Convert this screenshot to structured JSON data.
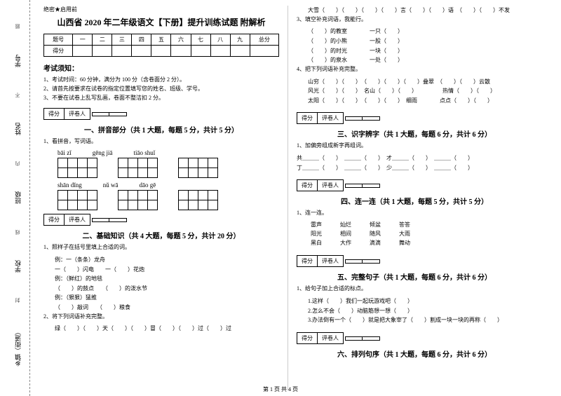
{
  "header_tag": "绝密★启用前",
  "title": "山西省 2020 年二年级语文【下册】提升训练试题 附解析",
  "score_table": {
    "cols": [
      "题号",
      "一",
      "二",
      "三",
      "四",
      "五",
      "六",
      "七",
      "八",
      "九",
      "总分"
    ],
    "row_label": "得分"
  },
  "instructions_heading": "考试须知：",
  "instructions": [
    "1、考试时间：60 分钟，满分为 100 分（含卷面分 2 分）。",
    "2、请首先按要求在试卷的指定位置填写您的姓名、班级、学号。",
    "3、不要在试卷上乱写乱画，卷面不整洁扣 2 分。"
  ],
  "score_box": {
    "label1": "得分",
    "label2": "评卷人"
  },
  "sections": {
    "s1": {
      "title": "一、拼音部分（共 1 大题，每题 5 分，共计 5 分）",
      "q1": "1、看拼音，写词语。",
      "pinyin": [
        [
          "bāi  zǐ",
          "gēng  jiā",
          "tiāo  shuǐ"
        ],
        [
          "shān dǐng",
          "nǔ  wā",
          "dāo  gē"
        ]
      ]
    },
    "s2": {
      "title": "二、基础知识（共 4 大题，每题 5 分，共计 20 分）",
      "q1": "1、照样子在括号里填上合适的词。",
      "ex1": "例：一（条条）龙舟",
      "items1": [
        "一（　　）闪电",
        "一（　　）花炮"
      ],
      "ex2": "例：（鲜红）的地毯",
      "items2": [
        "（　　）的鼓点",
        "（　　）的泼水节"
      ],
      "ex3": "例：（狠狠）猛推",
      "items3": [
        "（　　）敲词",
        "（　　）粮食"
      ],
      "q2": "2、将下列词语补充完整。",
      "row_a": "绿（　　）（　　）天（　　）（　　）冒（　　）（　　）过（　　）过",
      "row_b": "大雪（　　）（　　）（　　）（　　）言（　　）（　　）语　（　　）（　　）不发",
      "q3": "3、填空补充词语，我能行。",
      "fill_items": [
        "（　　）的教室　　　　一只（　　）",
        "（　　）的小熊　　　　一股（　　）",
        "（　　）的时光　　　　一块（　　）",
        "（　　）的泉水　　　　一处（　　）"
      ],
      "q4": "4、把下列词语补充完整。",
      "fill_row1": "山穷（　　）（　　）　（　　）（　　）（　　）叠翠　（　　）（　　）云散",
      "fill_row2": "风光（　　）（　　）　名山（　　）（　　）　　　　　热情（　　）（　　）",
      "fill_row3": "太阳（　　）（　　）　（　　）（　　）　细雨　　　　点点（　　）（　　）"
    },
    "s3": {
      "title": "三、识字辨字（共 1 大题，每题 6 分，共计 6 分）",
      "q1": "1、加偏旁组成新字再组词。",
      "rows": [
        "共＿＿＿（　　）　＿＿＿（　　）　才＿＿＿（　　）　＿＿＿（　　）",
        "丁＿＿＿（　　）　＿＿＿（　　）　少＿＿＿（　　）　＿＿＿（　　）"
      ]
    },
    "s4": {
      "title": "四、连一连（共 1 大题，每题 5 分，共计 5 分）",
      "q1": "1、连一连。",
      "pairs": [
        [
          "雷声",
          "灿烂",
          "倾盆",
          "答答"
        ],
        [
          "阳光",
          "相间",
          "随风",
          "大雨"
        ],
        [
          "黑白",
          "大作",
          "滴滴",
          "舞动"
        ]
      ]
    },
    "s5": {
      "title": "五、完整句子（共 1 大题，每题 6 分，共计 6 分）",
      "q1": "1、给句子加上合适的标点。",
      "items": [
        "1.这样（　　）我们一起玩游戏吧（　　）",
        "2.怎么不会（　　）动脑筋想一想（　　）",
        "3.办法倒有一个（　　）就是把大象宰了（　　）割成一块一块的再称（　　）"
      ]
    },
    "s6": {
      "title": "六、排列句序（共 1 大题，每题 6 分，共计 6 分）"
    }
  },
  "margin_labels": [
    "乡镇（街道）",
    "学校",
    "班级",
    "姓名",
    "学号"
  ],
  "margin_marks": [
    "封",
    "线",
    "内",
    "不",
    "准",
    "题"
  ],
  "footer": "第 1 页 共 4 页"
}
